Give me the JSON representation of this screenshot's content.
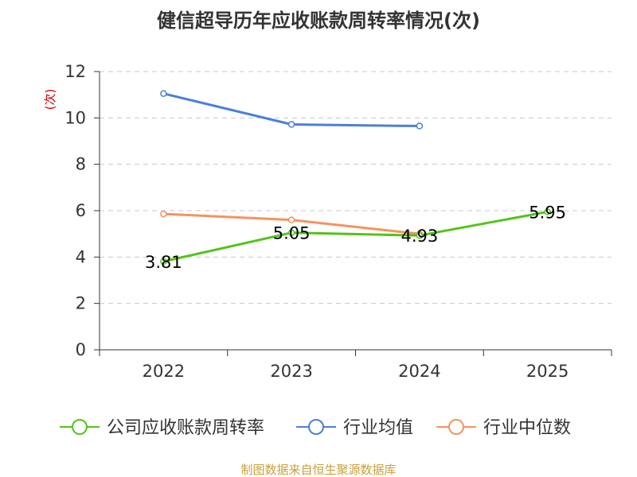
{
  "chart_data": {
    "type": "line",
    "title": "健信超导历年应收账款周转率情况(次)",
    "ylabel": "(次)",
    "xlabel": "",
    "categories": [
      "2022",
      "2023",
      "2024",
      "2025"
    ],
    "ylim": [
      0,
      12
    ],
    "yticks": [
      0,
      2,
      4,
      6,
      8,
      10,
      12
    ],
    "grid": true,
    "legend_position": "bottom",
    "series": [
      {
        "name": "公司应收账款周转率",
        "color": "#52c41a",
        "values": [
          3.81,
          5.05,
          4.93,
          5.95
        ],
        "labels": [
          "3.81",
          "5.05",
          "4.93",
          "5.95"
        ]
      },
      {
        "name": "行业均值",
        "color": "#4a7fdc",
        "values": [
          11.05,
          9.72,
          9.65,
          null
        ]
      },
      {
        "name": "行业中位数",
        "color": "#f4935e",
        "values": [
          5.86,
          5.6,
          5.0,
          null
        ]
      }
    ],
    "source": "制图数据来自恒生聚源数据库"
  }
}
